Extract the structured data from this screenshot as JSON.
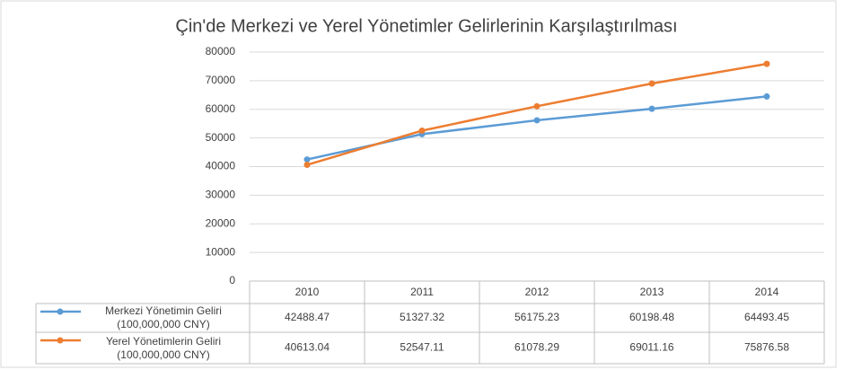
{
  "chart_data": {
    "type": "line",
    "title": "Çin'de Merkezi ve Yerel Yönetimler Gelirlerinin Karşılaştırılması",
    "categories": [
      "2010",
      "2011",
      "2012",
      "2013",
      "2014"
    ],
    "series": [
      {
        "name": "Merkezi Yönetimin Geliri (100,000,000 CNY)",
        "color": "#5b9bd5",
        "values": [
          42488.47,
          51327.32,
          56175.23,
          60198.48,
          64493.45
        ]
      },
      {
        "name": "Yerel Yönetimlerin Geliri (100,000,000 CNY)",
        "color": "#ed7d31",
        "values": [
          40613.04,
          52547.11,
          61078.29,
          69011.16,
          75876.58
        ]
      }
    ],
    "ylim": [
      0,
      80000
    ],
    "yticks": [
      0,
      10000,
      20000,
      30000,
      40000,
      50000,
      60000,
      70000,
      80000
    ],
    "grid": true
  }
}
